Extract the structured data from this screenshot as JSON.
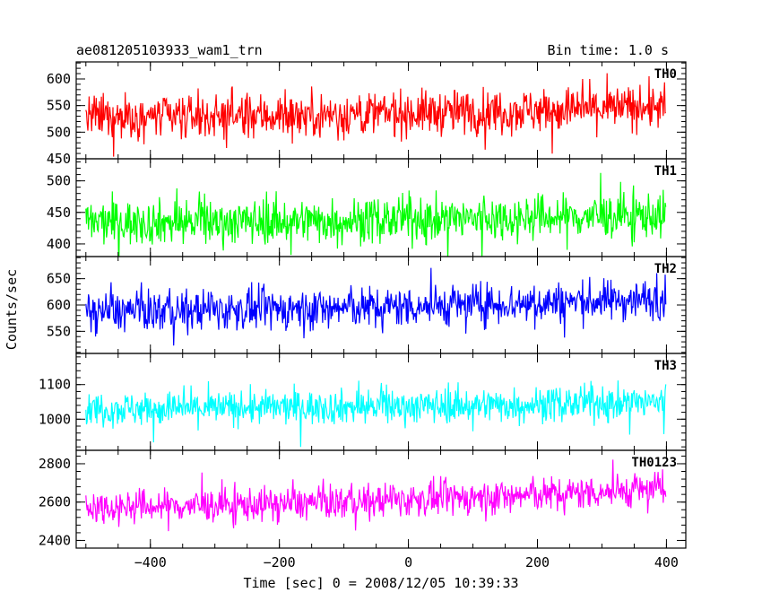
{
  "header": {
    "title": "ae081205103933_wam1_trn",
    "bin_time": "Bin time: 1.0 s"
  },
  "chart_data": {
    "type": "line",
    "title": "ae081205103933_wam1_trn",
    "subtitle": "Bin time: 1.0 s",
    "xlabel": "Time [sec] 0 = 2008/12/05 10:39:33",
    "ylabel": "Counts/sec",
    "xlim": [
      -515,
      430
    ],
    "x_ticks": [
      -400,
      -200,
      0,
      200,
      400
    ],
    "x_tick_labels": [
      "−400",
      "−200",
      "0",
      "200",
      "400"
    ],
    "x_range": [
      -500,
      399
    ],
    "bin": 1.0,
    "grid": false,
    "panels": [
      {
        "name": "TH0",
        "color": "#ff0000",
        "ylim": [
          450,
          632
        ],
        "y_ticks": [
          450,
          500,
          550,
          600
        ],
        "mean_start": 528,
        "mean_end": 548,
        "noise_amplitude": 38
      },
      {
        "name": "TH1",
        "color": "#00ff00",
        "ylim": [
          380,
          535
        ],
        "y_ticks": [
          400,
          450,
          500
        ],
        "mean_start": 434,
        "mean_end": 446,
        "noise_amplitude": 32
      },
      {
        "name": "TH2",
        "color": "#0000ff",
        "ylim": [
          508,
          692
        ],
        "y_ticks": [
          550,
          600,
          650
        ],
        "mean_start": 588,
        "mean_end": 612,
        "noise_amplitude": 35
      },
      {
        "name": "TH3",
        "color": "#00ffff",
        "ylim": [
          910,
          1190
        ],
        "y_ticks": [
          1000,
          1100
        ],
        "mean_start": 1030,
        "mean_end": 1050,
        "noise_amplitude": 45
      },
      {
        "name": "TH0123",
        "color": "#ff00ff",
        "ylim": [
          2360,
          2870
        ],
        "y_ticks": [
          2400,
          2600,
          2800
        ],
        "mean_start": 2575,
        "mean_end": 2670,
        "noise_amplitude": 80
      }
    ]
  }
}
